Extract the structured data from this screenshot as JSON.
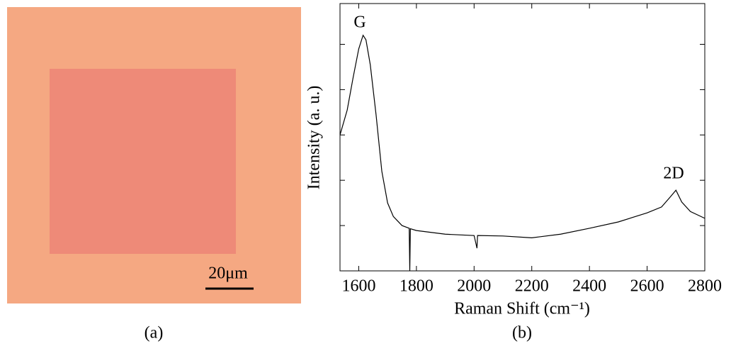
{
  "image": {
    "scale_bar": "20μm",
    "caption": "(a)"
  },
  "chart_data": {
    "type": "line",
    "caption": "(b)",
    "xlabel": "Raman Shift (cm⁻¹)",
    "ylabel": "Intensity (a. u.)",
    "annotations": [
      "G",
      "2D"
    ],
    "xlim": [
      1535,
      2800
    ],
    "xticks": [
      1600,
      1800,
      2000,
      2200,
      2400,
      2600,
      2800
    ],
    "ylim": [
      0,
      5.9
    ],
    "yticks": [
      1,
      2,
      3,
      4,
      5
    ],
    "series": [
      {
        "color": "#000000",
        "x": [
          1535,
          1560,
          1580,
          1600,
          1615,
          1625,
          1640,
          1660,
          1680,
          1700,
          1720,
          1750,
          1775,
          1777,
          1779,
          1800,
          1900,
          2000,
          2010,
          2012,
          2100,
          2200,
          2300,
          2400,
          2500,
          2600,
          2650,
          2680,
          2700,
          2720,
          2750,
          2800
        ],
        "values": [
          3.0,
          3.55,
          4.25,
          4.9,
          5.2,
          5.1,
          4.55,
          3.45,
          2.2,
          1.5,
          1.2,
          1.0,
          0.94,
          0.0,
          0.93,
          0.89,
          0.81,
          0.78,
          0.5,
          0.78,
          0.77,
          0.73,
          0.81,
          0.94,
          1.08,
          1.28,
          1.41,
          1.63,
          1.78,
          1.52,
          1.31,
          1.16
        ]
      }
    ]
  }
}
